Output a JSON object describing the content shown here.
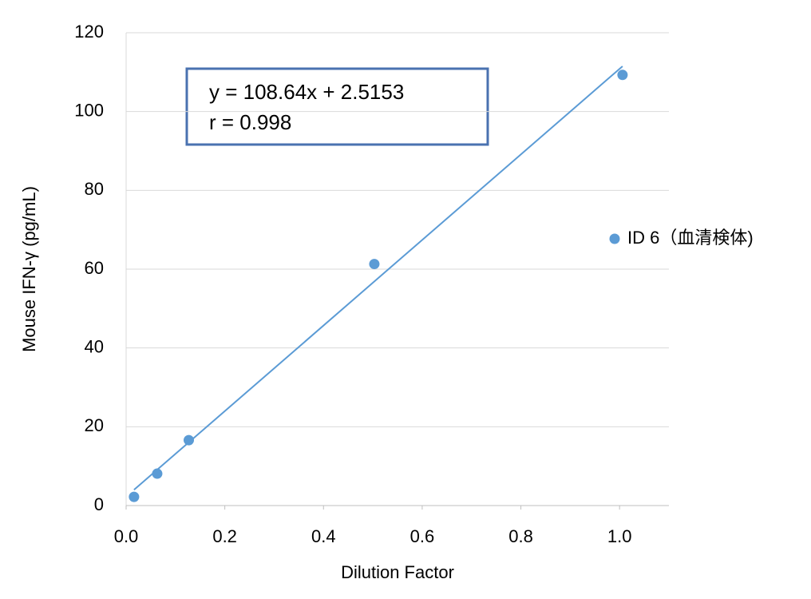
{
  "chart_data": {
    "type": "scatter",
    "xlabel": "Dilution Factor",
    "ylabel": "Mouse IFN-γ (pg/mL)",
    "annotations": [
      "y = 108.64x + 2.5153",
      "r = 0.998"
    ],
    "series": [
      {
        "name": "ID 6（血清検体)",
        "color": "#5b9bd5",
        "x": [
          0.016,
          0.063,
          0.127,
          0.503,
          1.006
        ],
        "values": [
          2.2,
          8.1,
          16.6,
          61.3,
          109.3
        ]
      }
    ],
    "trendline": true,
    "xlim": [
      0,
      1.1
    ],
    "xticks": [
      {
        "value": 0,
        "label": "0.0"
      },
      {
        "value": 0.2,
        "label": "0.2"
      },
      {
        "value": 0.4,
        "label": "0.4"
      },
      {
        "value": 0.6,
        "label": "0.6"
      },
      {
        "value": 0.8,
        "label": "0.8"
      },
      {
        "value": 1,
        "label": "1.0"
      }
    ],
    "ylim": [
      0,
      120
    ],
    "yticks": [
      0,
      20,
      40,
      60,
      80,
      100,
      120
    ],
    "grid": true,
    "legend": "right"
  }
}
